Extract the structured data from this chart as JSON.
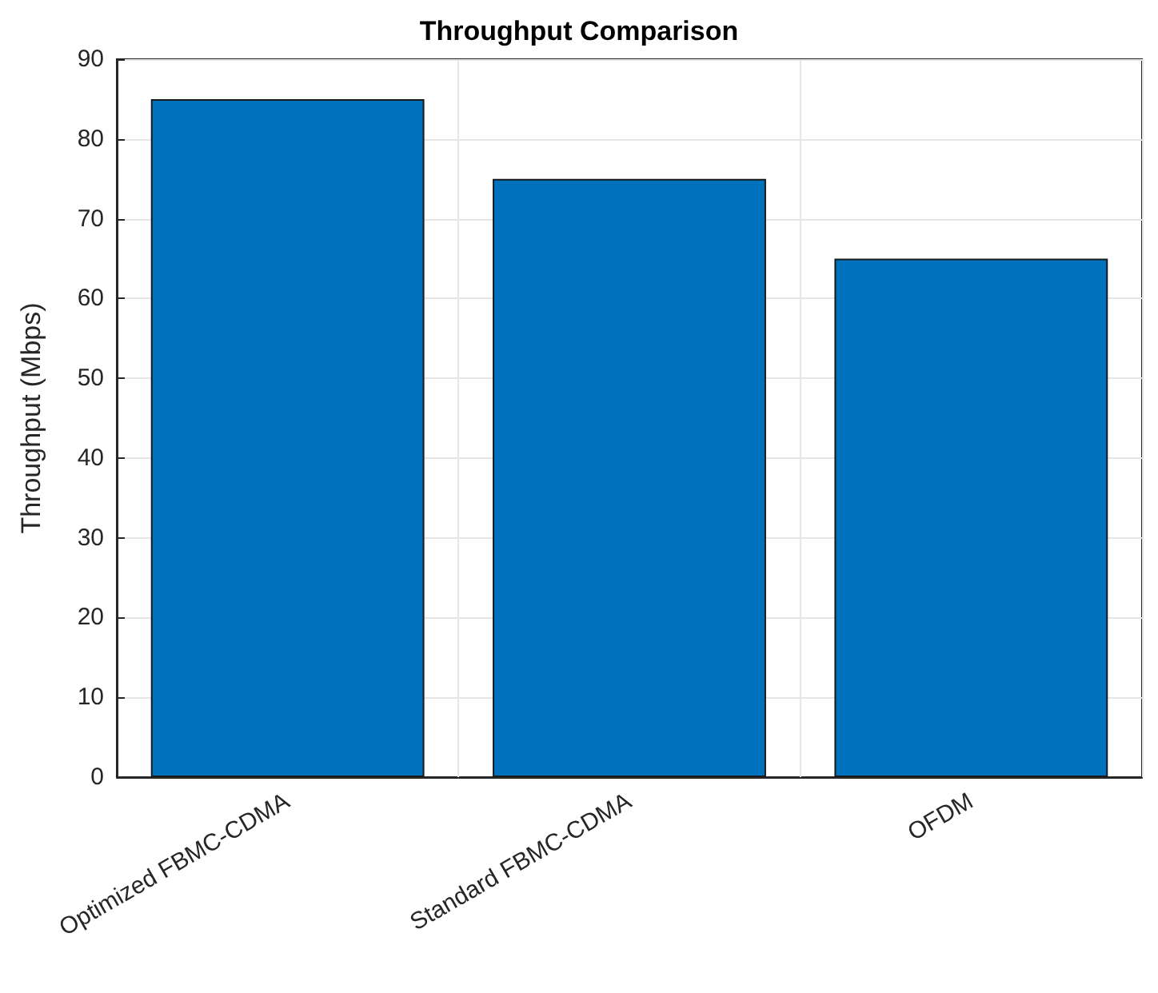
{
  "chart_data": {
    "type": "bar",
    "title": "Throughput Comparison",
    "ylabel": "Throughput (Mbps)",
    "categories": [
      "Optimized FBMC-CDMA",
      "Standard FBMC-CDMA",
      "OFDM"
    ],
    "values": [
      85,
      75,
      65
    ],
    "color": "#0072bd",
    "ylim": [
      0,
      90
    ],
    "yticks": [
      0,
      10,
      20,
      30,
      40,
      50,
      60,
      70,
      80,
      90
    ],
    "grid": true
  }
}
